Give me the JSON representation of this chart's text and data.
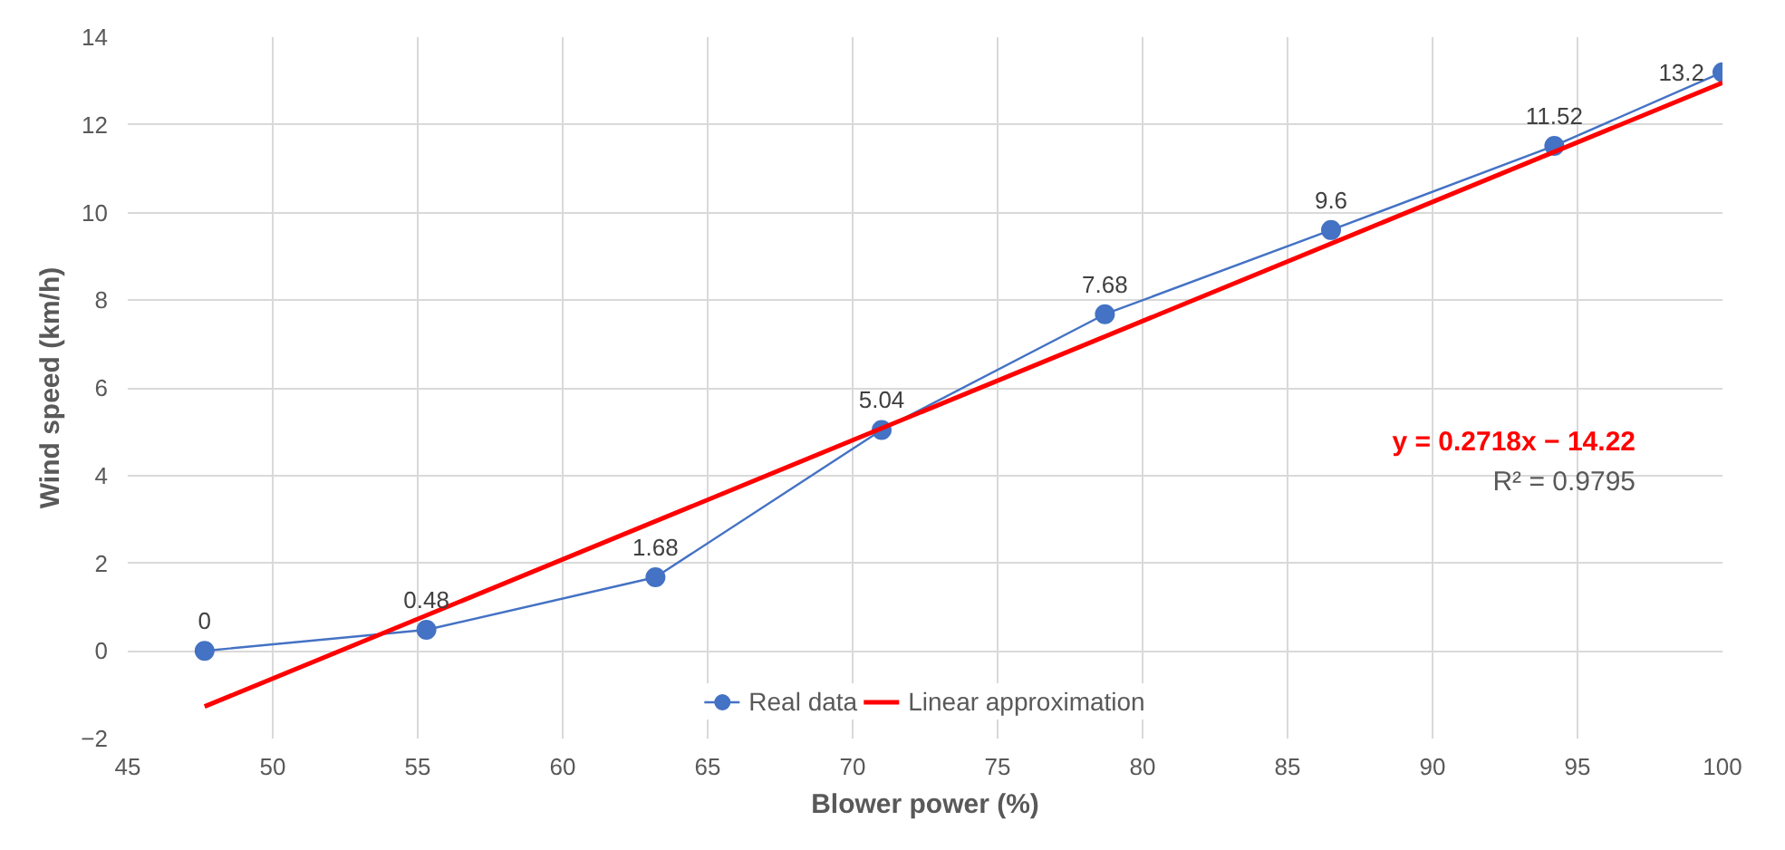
{
  "chart_data": {
    "type": "line",
    "xlabel": "Blower power (%)",
    "ylabel": "Wind speed (km/h)",
    "xlim": [
      45,
      100
    ],
    "ylim": [
      -2,
      14
    ],
    "xticks": [
      45,
      50,
      55,
      60,
      65,
      70,
      75,
      80,
      85,
      90,
      95,
      100
    ],
    "yticks": [
      -2,
      0,
      2,
      4,
      6,
      8,
      10,
      12,
      14
    ],
    "grid": true,
    "legend": "bottom",
    "annotations": [
      "y = 0.2718x − 14.22",
      "R² = 0.9795"
    ],
    "series": [
      {
        "name": "Real data",
        "color": "#4472c4",
        "marker": "circle",
        "data_labels": true,
        "x": [
          47.65,
          55.3,
          63.2,
          71.0,
          78.7,
          86.5,
          94.2,
          100
        ],
        "values": [
          0,
          0.48,
          1.68,
          5.04,
          7.68,
          9.6,
          11.52,
          13.2
        ]
      },
      {
        "name": "Linear approximation",
        "color": "#ff0000",
        "marker": "none",
        "x": [
          47.65,
          100
        ],
        "values": [
          -1.27,
          12.96
        ]
      }
    ]
  }
}
